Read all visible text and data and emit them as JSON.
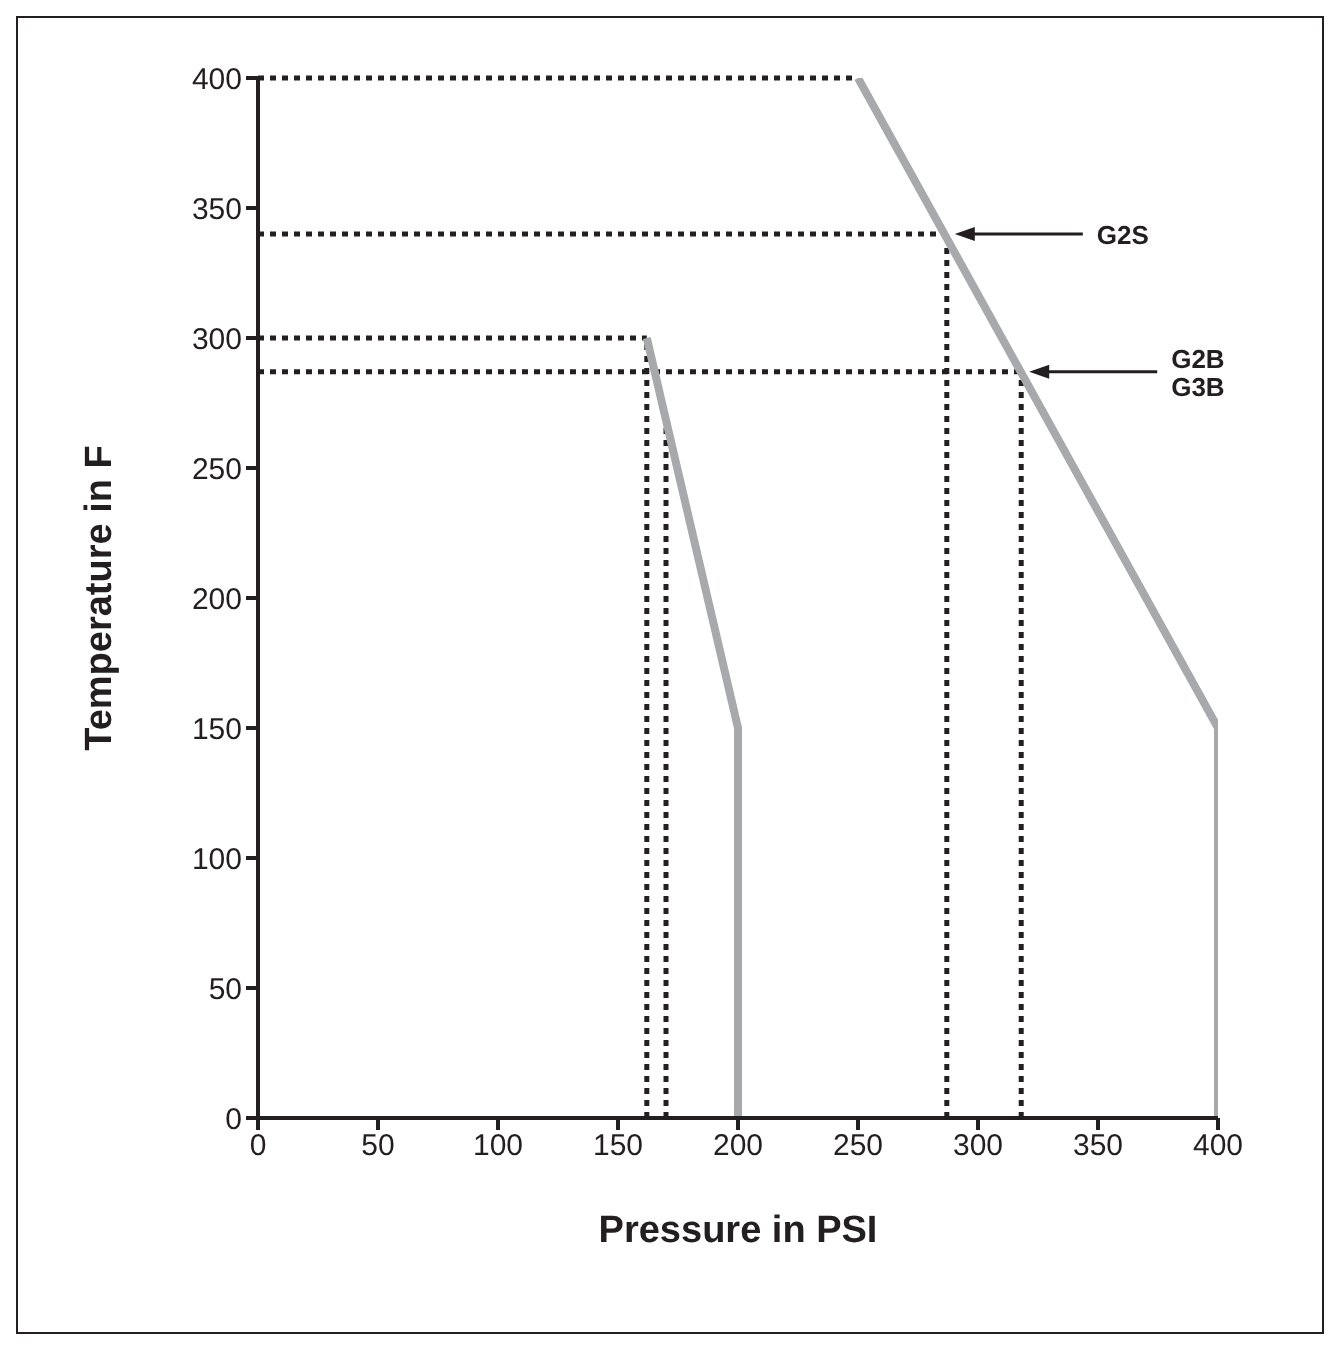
{
  "chart_data": {
    "type": "line",
    "xlabel": "Pressure in PSI",
    "ylabel": "Temperature in F",
    "series": [
      {
        "color": "#a7a9ac",
        "x": [
          162,
          200,
          200
        ],
        "values": [
          300,
          150,
          0
        ]
      },
      {
        "color": "#a7a9ac",
        "x": [
          250,
          400,
          400
        ],
        "values": [
          400,
          150,
          0
        ]
      }
    ],
    "xlim": [
      0,
      400
    ],
    "xticks": [
      0,
      50,
      100,
      150,
      200,
      250,
      300,
      350,
      400
    ],
    "ylim": [
      0,
      400
    ],
    "yticks": [
      0,
      50,
      100,
      150,
      200,
      250,
      300,
      350,
      400
    ],
    "grid": false,
    "legend": false,
    "marker": "none",
    "line_style": "solid",
    "ref_lines": [
      {
        "axis": "y",
        "value": 400,
        "color": "#231f20",
        "line_style": "dotted"
      },
      {
        "axis": "y",
        "value": 340,
        "color": "#231f20",
        "line_style": "dotted"
      },
      {
        "axis": "y",
        "value": 300,
        "color": "#231f20",
        "line_style": "dotted"
      },
      {
        "axis": "y",
        "value": 287,
        "color": "#231f20",
        "line_style": "dotted"
      },
      {
        "axis": "x",
        "value": 162,
        "color": "#231f20",
        "line_style": "dotted"
      },
      {
        "axis": "x",
        "value": 170,
        "color": "#231f20",
        "line_style": "dotted"
      },
      {
        "axis": "x",
        "value": 287,
        "color": "#231f20",
        "line_style": "dotted"
      },
      {
        "axis": "x",
        "value": 318,
        "color": "#231f20",
        "line_style": "dotted"
      }
    ],
    "annotations": [
      {
        "text": "G2S",
        "x": 287,
        "y": 340
      },
      {
        "text": "G2B\nG3B",
        "x": 318,
        "y": 287
      }
    ]
  }
}
